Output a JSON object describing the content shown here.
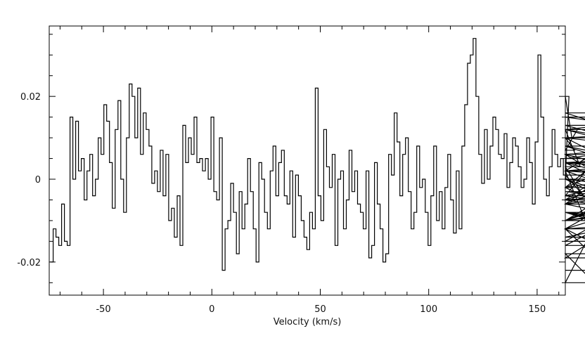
{
  "chart_data": {
    "type": "line",
    "style": "step",
    "title": "",
    "xlabel": "Velocity (km/s)",
    "ylabel": "",
    "xlim": [
      -75,
      163
    ],
    "ylim": [
      -0.028,
      0.037
    ],
    "x_ticks": [
      -50,
      0,
      50,
      100,
      150
    ],
    "y_ticks": [
      -0.02,
      0,
      0.02
    ],
    "x_tick_labels": [
      "-50",
      "0",
      "50",
      "100",
      "150"
    ],
    "y_tick_labels": [
      "-0.02",
      "0",
      "0.02"
    ],
    "grid": false,
    "legend": "none",
    "line_color": "#000000",
    "channel_width_km_s": 1.3,
    "series": [
      {
        "x_start": -74.5,
        "values": [
          -0.02,
          -0.012,
          -0.014,
          -0.016,
          -0.006,
          -0.015,
          -0.016,
          0.015,
          0.0,
          0.014,
          0.002,
          0.005,
          -0.005,
          0.002,
          0.006,
          -0.004,
          0.0,
          0.01,
          0.006,
          0.018,
          0.014,
          0.004,
          -0.007,
          0.012,
          0.019,
          0.0,
          -0.008,
          0.01,
          0.023,
          0.02,
          0.01,
          0.022,
          0.006,
          0.016,
          0.012,
          0.008,
          -0.001,
          0.002,
          -0.003,
          0.007,
          -0.004,
          0.006,
          -0.01,
          -0.007,
          -0.014,
          -0.004,
          -0.016,
          0.013,
          0.004,
          0.01,
          0.006,
          0.015,
          0.004,
          0.005,
          0.002,
          0.005,
          0.0,
          0.015,
          -0.003,
          -0.005,
          0.01,
          -0.022,
          -0.012,
          -0.01,
          -0.001,
          -0.008,
          -0.018,
          -0.003,
          -0.012,
          -0.006,
          0.005,
          -0.003,
          -0.012,
          -0.02,
          0.004,
          0.0,
          -0.008,
          -0.012,
          0.002,
          0.008,
          -0.004,
          0.004,
          0.007,
          -0.004,
          -0.006,
          0.002,
          -0.014,
          0.001,
          -0.004,
          -0.01,
          -0.014,
          -0.017,
          -0.008,
          -0.012,
          0.022,
          -0.004,
          -0.01,
          0.012,
          0.003,
          -0.002,
          0.006,
          -0.016,
          0.0,
          0.002,
          -0.012,
          -0.005,
          0.007,
          -0.003,
          0.002,
          -0.006,
          -0.008,
          -0.012,
          0.002,
          -0.019,
          -0.016,
          0.004,
          -0.006,
          -0.012,
          -0.02,
          -0.018,
          0.006,
          0.001,
          0.016,
          0.009,
          -0.004,
          0.006,
          0.01,
          -0.003,
          -0.012,
          -0.008,
          0.008,
          -0.002,
          0.0,
          -0.008,
          -0.016,
          -0.004,
          0.008,
          -0.01,
          -0.003,
          -0.012,
          -0.002,
          0.006,
          -0.005,
          -0.013,
          0.002,
          -0.012,
          0.008,
          0.018,
          0.028,
          0.03,
          0.034,
          0.02,
          0.006,
          -0.001,
          0.012,
          0.0,
          0.008,
          0.015,
          0.012,
          0.006,
          0.005,
          0.011,
          -0.002,
          0.004,
          0.01,
          0.008,
          0.003,
          -0.002,
          0.0,
          0.01,
          0.004,
          -0.006,
          0.009,
          0.03,
          0.015,
          0.0,
          -0.004,
          0.003,
          0.012,
          0.006,
          0.003,
          0.005,
          0.001,
          0.0,
          0.02,
          0.01,
          0.007,
          0.012,
          0.003,
          -0.004,
          0.002,
          -0.012,
          -0.018,
          -0.025,
          -0.01,
          -0.005,
          0.001,
          -0.01,
          -0.006,
          0.002,
          -0.002,
          -0.008,
          -0.012,
          -0.019,
          -0.01,
          -0.005,
          0.0,
          -0.008,
          -0.012,
          -0.002,
          0.013,
          0.008,
          0.004,
          0.002,
          0.015,
          0.012,
          0.006,
          0.0,
          -0.008,
          -0.01,
          -0.006,
          0.004,
          0.002,
          0.0,
          -0.003,
          -0.006,
          -0.012,
          -0.01,
          -0.01,
          0.004,
          0.006,
          -0.002,
          0.012,
          0.006,
          -0.015,
          0.005,
          0.01,
          0.012,
          0.016,
          0.004,
          -0.006,
          0.0,
          -0.004,
          -0.01,
          -0.005,
          -0.002,
          0.004,
          0.0,
          -0.005,
          -0.012,
          0.002,
          0.006,
          0.01,
          -0.014,
          -0.004,
          0.008,
          -0.008,
          -0.016,
          0.01,
          0.004,
          -0.022
        ]
      }
    ]
  }
}
